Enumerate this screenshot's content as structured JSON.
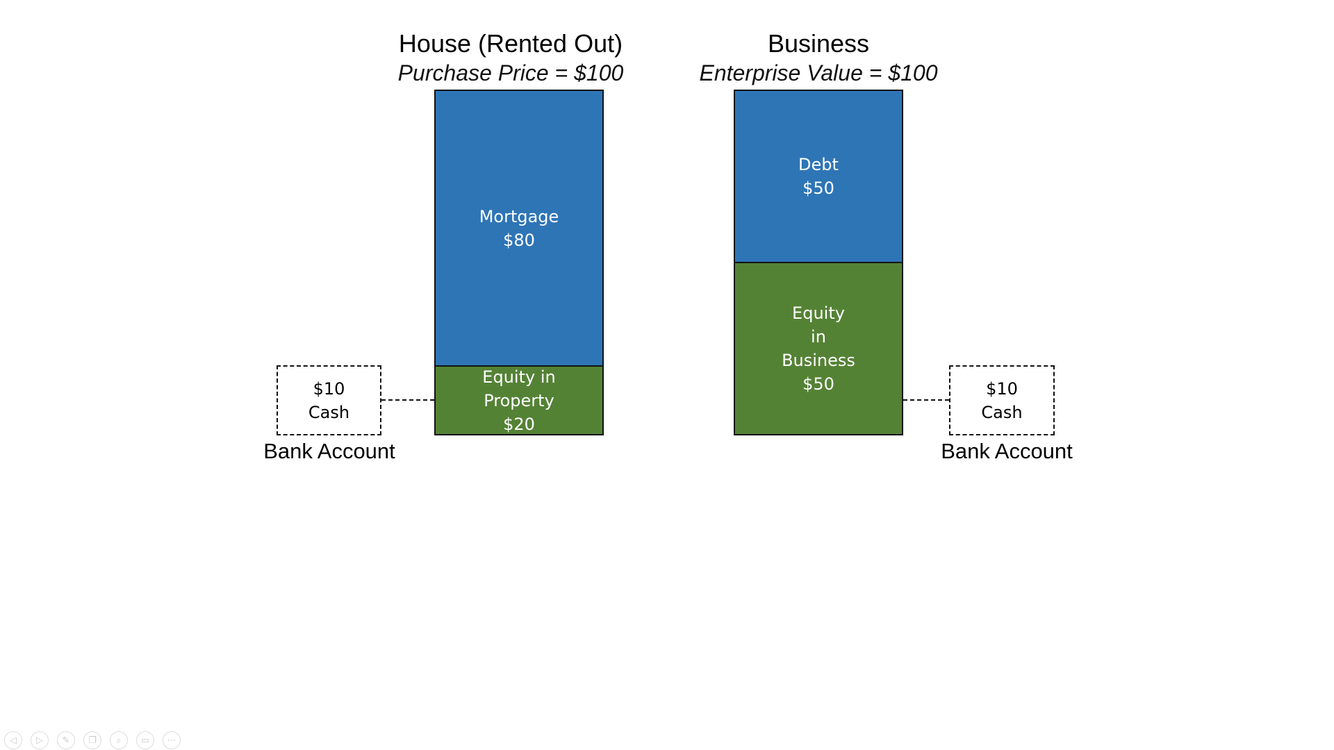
{
  "house": {
    "title": "House (Rented Out)",
    "subtitle": "Purchase Price = $100",
    "segments": [
      {
        "lines": [
          "Mortgage",
          "$80"
        ],
        "value": 80,
        "color": "#2e75b6"
      },
      {
        "lines": [
          "Equity in",
          "Property",
          "$20"
        ],
        "value": 20,
        "color": "#548235"
      }
    ],
    "cash": {
      "amount": "$10",
      "label": "Cash"
    },
    "bank_label": "Bank Account"
  },
  "business": {
    "title": "Business",
    "subtitle": "Enterprise Value = $100",
    "segments": [
      {
        "lines": [
          "Debt",
          "$50"
        ],
        "value": 50,
        "color": "#2e75b6"
      },
      {
        "lines": [
          "Equity",
          "in",
          "Business",
          "$50"
        ],
        "value": 50,
        "color": "#548235"
      }
    ],
    "cash": {
      "amount": "$10",
      "label": "Cash"
    },
    "bank_label": "Bank Account"
  },
  "slideshow_controls": [
    {
      "icon": "previous-icon",
      "glyph": "◁"
    },
    {
      "icon": "next-icon",
      "glyph": "▷"
    },
    {
      "icon": "pen-icon",
      "glyph": "✎"
    },
    {
      "icon": "slides-icon",
      "glyph": "❐"
    },
    {
      "icon": "zoom-icon",
      "glyph": "⌕"
    },
    {
      "icon": "screen-icon",
      "glyph": "▭"
    },
    {
      "icon": "more-icon",
      "glyph": "⋯"
    }
  ]
}
